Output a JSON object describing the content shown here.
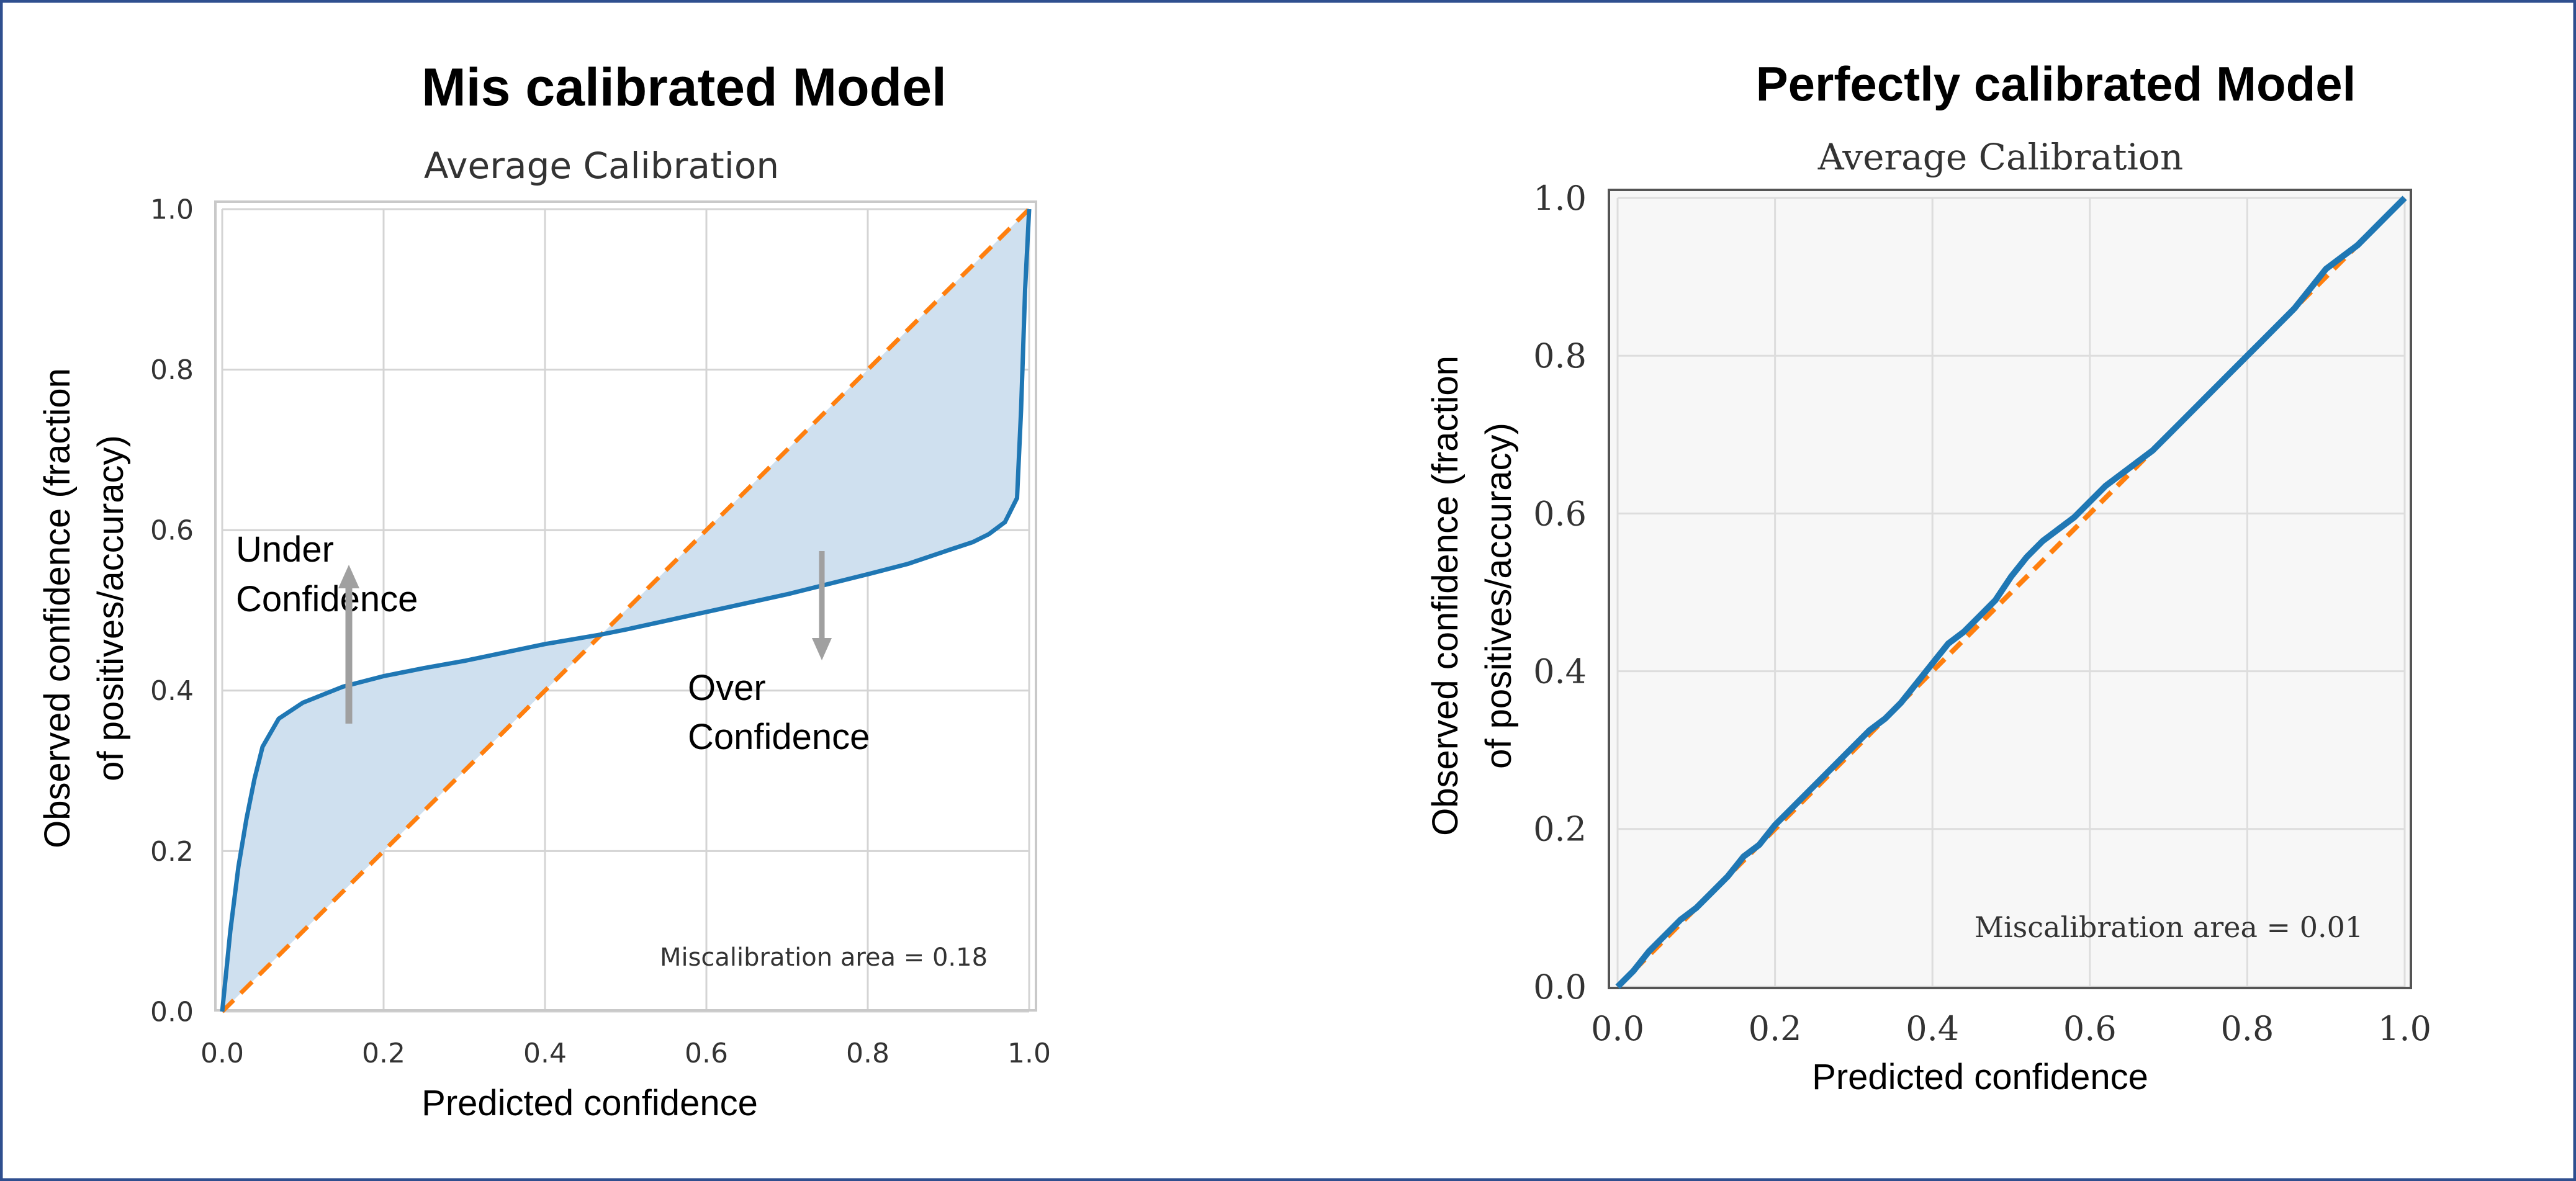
{
  "figure_headings": {
    "left": "Mis calibrated Model",
    "right": "Perfectly calibrated Model"
  },
  "annotations": {
    "under": [
      "Under",
      "Confidence"
    ],
    "over": [
      "Over",
      "Confidence"
    ]
  },
  "colors": {
    "frame": "#2f4f8f",
    "model_curve": "#1f77b4",
    "ideal_line": "#ff7f0e",
    "fill": "#cfe0ef",
    "grid": "#cccccc",
    "arrow": "#a0a0a0",
    "right_plot_bg": "#f7f7f7"
  },
  "chart_data": [
    {
      "type": "line",
      "title": "Average Calibration",
      "xlabel": "Predicted confidence",
      "ylabel": [
        "Observed confidence (fraction",
        "of positives/accuracy)"
      ],
      "xlim": [
        0,
        1
      ],
      "ylim": [
        0,
        1
      ],
      "xticks": [
        "0.0",
        "0.2",
        "0.4",
        "0.6",
        "0.8",
        "1.0"
      ],
      "yticks": [
        "0.0",
        "0.2",
        "0.4",
        "0.6",
        "0.8",
        "1.0"
      ],
      "grid": true,
      "annotation": "Miscalibration area = 0.18",
      "series": [
        {
          "x": [
            0,
            0.01,
            0.02,
            0.03,
            0.04,
            0.05,
            0.07,
            0.1,
            0.15,
            0.2,
            0.25,
            0.3,
            0.4,
            0.47,
            0.5,
            0.6,
            0.7,
            0.8,
            0.85,
            0.9,
            0.93,
            0.95,
            0.97,
            0.98,
            0.985,
            0.99,
            0.995,
            1.0
          ],
          "y": [
            0,
            0.1,
            0.18,
            0.24,
            0.29,
            0.33,
            0.365,
            0.385,
            0.405,
            0.418,
            0.428,
            0.437,
            0.458,
            0.47,
            0.476,
            0.498,
            0.52,
            0.545,
            0.558,
            0.575,
            0.585,
            0.595,
            0.61,
            0.63,
            0.64,
            0.75,
            0.9,
            1.0
          ]
        },
        {
          "x": [
            0,
            1
          ],
          "y": [
            0,
            1
          ]
        }
      ]
    },
    {
      "type": "line",
      "title": "Average Calibration",
      "xlabel": "Predicted confidence",
      "ylabel": [
        "Observed confidence (fraction",
        "of positives/accuracy)"
      ],
      "xlim": [
        0,
        1
      ],
      "ylim": [
        0,
        1
      ],
      "xticks": [
        "0.0",
        "0.2",
        "0.4",
        "0.6",
        "0.8",
        "1.0"
      ],
      "yticks": [
        "0.0",
        "0.2",
        "0.4",
        "0.6",
        "0.8",
        "1.0"
      ],
      "grid": true,
      "annotation": "Miscalibration area = 0.01",
      "series": [
        {
          "x": [
            0,
            0.02,
            0.04,
            0.06,
            0.08,
            0.1,
            0.12,
            0.14,
            0.16,
            0.18,
            0.2,
            0.22,
            0.24,
            0.26,
            0.28,
            0.3,
            0.32,
            0.34,
            0.36,
            0.38,
            0.4,
            0.42,
            0.44,
            0.46,
            0.48,
            0.5,
            0.52,
            0.54,
            0.56,
            0.58,
            0.6,
            0.62,
            0.64,
            0.66,
            0.68,
            0.7,
            0.72,
            0.74,
            0.76,
            0.78,
            0.8,
            0.82,
            0.84,
            0.86,
            0.88,
            0.9,
            0.92,
            0.94,
            0.96,
            0.98,
            1.0
          ],
          "y": [
            0,
            0.02,
            0.045,
            0.065,
            0.085,
            0.1,
            0.12,
            0.14,
            0.165,
            0.18,
            0.205,
            0.225,
            0.245,
            0.265,
            0.285,
            0.305,
            0.325,
            0.34,
            0.36,
            0.385,
            0.41,
            0.435,
            0.45,
            0.47,
            0.49,
            0.52,
            0.545,
            0.565,
            0.58,
            0.595,
            0.615,
            0.635,
            0.65,
            0.665,
            0.68,
            0.7,
            0.72,
            0.74,
            0.76,
            0.78,
            0.8,
            0.82,
            0.84,
            0.86,
            0.885,
            0.91,
            0.925,
            0.94,
            0.96,
            0.98,
            1.0
          ]
        },
        {
          "x": [
            0,
            1
          ],
          "y": [
            0,
            1
          ]
        }
      ]
    }
  ]
}
